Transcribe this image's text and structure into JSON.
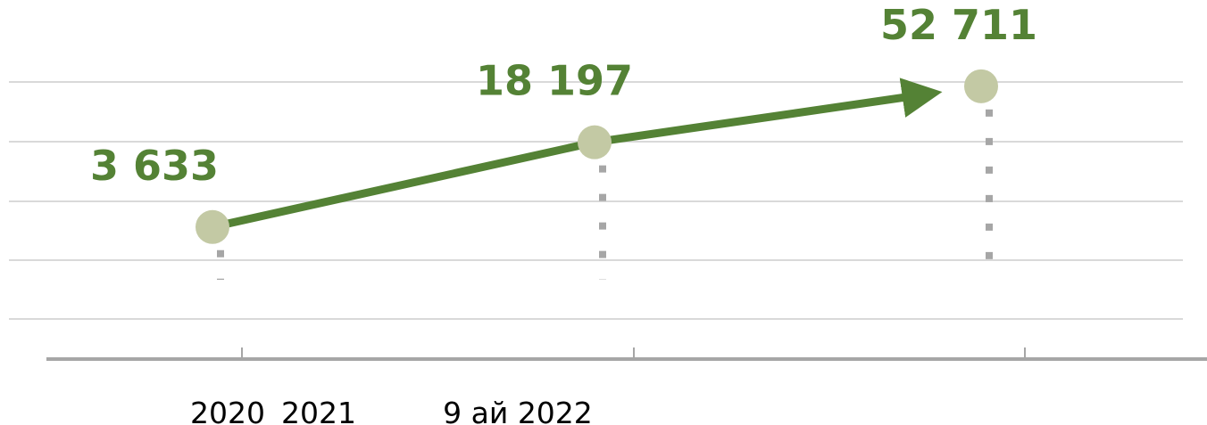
{
  "chart_data": {
    "type": "line",
    "categories": [
      "2020",
      "2021",
      "9 ай 2022"
    ],
    "series": [
      {
        "color": "#548235",
        "marker_color": "#c3c9a4",
        "values": [
          3633,
          18197,
          52711
        ],
        "value_labels": [
          "3 633",
          "18 197",
          "52 711"
        ]
      }
    ],
    "log_scale": true,
    "ylim": [
      1000,
      100000
    ]
  }
}
